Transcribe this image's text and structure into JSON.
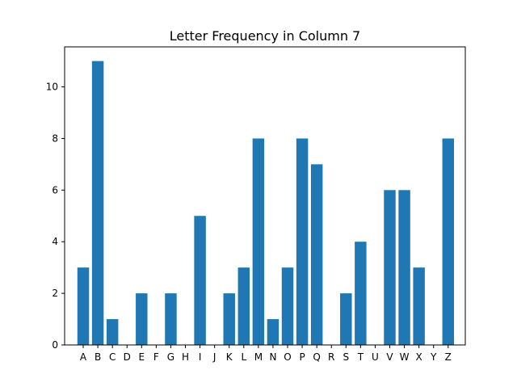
{
  "chart_data": {
    "type": "bar",
    "title": "Letter Frequency in Column 7",
    "xlabel": "",
    "ylabel": "",
    "categories": [
      "A",
      "B",
      "C",
      "D",
      "E",
      "F",
      "G",
      "H",
      "I",
      "J",
      "K",
      "L",
      "M",
      "N",
      "O",
      "P",
      "Q",
      "R",
      "S",
      "T",
      "U",
      "V",
      "W",
      "X",
      "Y",
      "Z"
    ],
    "values": [
      3,
      11,
      1,
      0,
      2,
      0,
      2,
      0,
      5,
      0,
      2,
      3,
      8,
      1,
      3,
      8,
      7,
      0,
      2,
      4,
      0,
      6,
      6,
      3,
      0,
      8
    ],
    "ylim": [
      0,
      11.55
    ],
    "yticks": [
      "0",
      "2",
      "4",
      "6",
      "8",
      "10"
    ],
    "grid": false,
    "legend": "none",
    "colors": {
      "bar": "#1f77b4",
      "axis": "#000000",
      "background": "#ffffff"
    }
  }
}
